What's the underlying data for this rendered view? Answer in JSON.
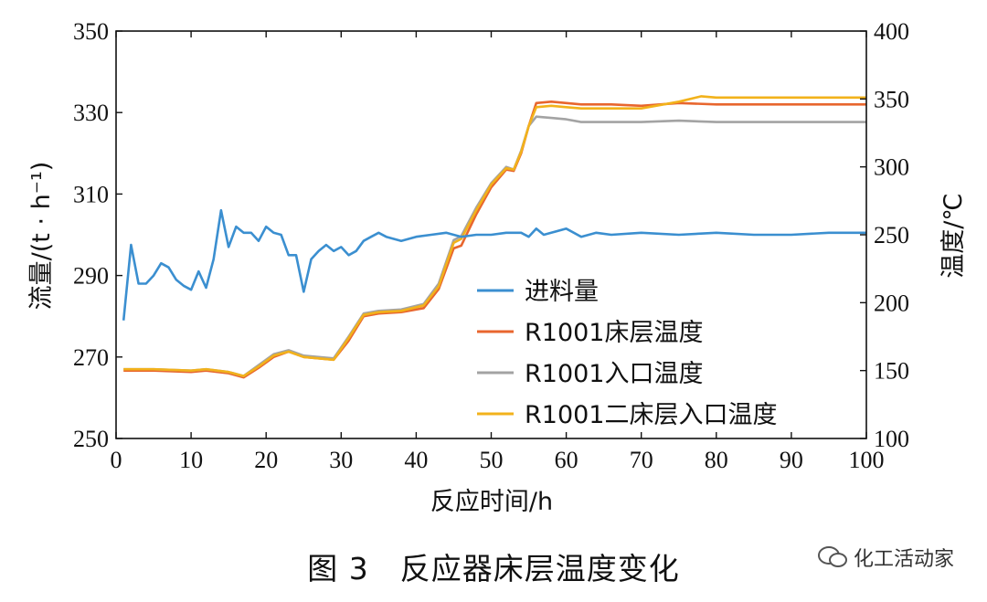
{
  "caption": "图 3　反应器床层温度变化",
  "watermark": "化工活动家",
  "chart_data": {
    "type": "line",
    "xlabel": "反应时间/h",
    "ylabel_left": "流量/(t · h⁻¹)",
    "ylabel_right": "温度/℃",
    "xlim": [
      0,
      100
    ],
    "ylim_left": [
      250,
      350
    ],
    "ylim_right": [
      100,
      400
    ],
    "xticks": [
      0,
      10,
      20,
      30,
      40,
      50,
      60,
      70,
      80,
      90,
      100
    ],
    "yticks_left": [
      250,
      270,
      290,
      310,
      330,
      350
    ],
    "yticks_right": [
      100,
      150,
      200,
      250,
      300,
      350,
      400
    ],
    "grid": false,
    "legend_position": "center-right",
    "series": [
      {
        "name": "进料量",
        "axis": "left",
        "color": "#3b8fd0",
        "x": [
          1,
          2,
          3,
          4,
          5,
          6,
          7,
          8,
          9,
          10,
          11,
          12,
          13,
          14,
          15,
          16,
          17,
          18,
          19,
          20,
          21,
          22,
          23,
          24,
          25,
          26,
          27,
          28,
          29,
          30,
          31,
          32,
          33,
          34,
          35,
          36,
          38,
          40,
          42,
          44,
          46,
          48,
          50,
          52,
          54,
          55,
          56,
          57,
          58,
          60,
          62,
          64,
          66,
          70,
          75,
          80,
          85,
          90,
          95,
          100
        ],
        "y": [
          279,
          297.5,
          288,
          288,
          290,
          293,
          292,
          289,
          287.5,
          286.5,
          291,
          287,
          294,
          306,
          297,
          302,
          300.5,
          300.5,
          298.5,
          302,
          300.5,
          300,
          295,
          295,
          286,
          294,
          296,
          297.5,
          296,
          297,
          295,
          296,
          298.5,
          299.5,
          300.5,
          299.5,
          298.5,
          299.5,
          300,
          300.5,
          299.5,
          300,
          300,
          300.5,
          300.5,
          299.5,
          301.5,
          300,
          300.5,
          301.5,
          299.5,
          300.5,
          300,
          300.5,
          300,
          300.5,
          300,
          300,
          300.5,
          300.5
        ]
      },
      {
        "name": "R1001床层温度",
        "axis": "right",
        "color": "#e8662e",
        "x": [
          1,
          5,
          10,
          12,
          15,
          17,
          19,
          21,
          23,
          25,
          27,
          29,
          31,
          33,
          35,
          38,
          41,
          43,
          45,
          46,
          48,
          50,
          52,
          53,
          54,
          55,
          56,
          58,
          60,
          62,
          66,
          70,
          75,
          80,
          85,
          90,
          95,
          100
        ],
        "y": [
          150,
          150,
          149,
          150,
          148,
          145,
          152,
          160,
          164,
          160,
          159,
          158,
          172,
          190,
          192,
          193,
          196,
          210,
          240,
          242,
          265,
          285,
          298,
          297,
          310,
          330,
          347,
          348,
          347,
          346,
          346,
          345,
          347,
          346,
          346,
          346,
          346,
          346
        ]
      },
      {
        "name": "R1001入口温度",
        "axis": "right",
        "color": "#a3a3a3",
        "x": [
          1,
          5,
          10,
          12,
          15,
          17,
          19,
          21,
          23,
          25,
          27,
          29,
          31,
          33,
          35,
          38,
          41,
          43,
          45,
          46,
          48,
          50,
          52,
          53,
          54,
          55,
          56,
          58,
          60,
          62,
          66,
          70,
          75,
          80,
          85,
          90,
          95,
          100
        ],
        "y": [
          151,
          151,
          150,
          151,
          149,
          146,
          154,
          162,
          165,
          161,
          160,
          159,
          175,
          192,
          194,
          195,
          199,
          214,
          246,
          249,
          270,
          288,
          300,
          298,
          312,
          330,
          337,
          336,
          335,
          333,
          333,
          333,
          334,
          333,
          333,
          333,
          333,
          333
        ]
      },
      {
        "name": "R1001二床层入口温度",
        "axis": "right",
        "color": "#f2b21b",
        "x": [
          1,
          5,
          10,
          12,
          15,
          17,
          19,
          21,
          23,
          25,
          27,
          29,
          31,
          33,
          35,
          38,
          41,
          43,
          45,
          46,
          48,
          50,
          52,
          53,
          54,
          55,
          56,
          58,
          60,
          62,
          66,
          70,
          75,
          78,
          80,
          85,
          90,
          95,
          100
        ],
        "y": [
          151,
          151,
          150,
          151,
          149,
          146,
          153,
          161,
          164,
          160,
          159,
          158,
          174,
          191,
          193,
          194,
          198,
          212,
          244,
          247,
          268,
          287,
          299,
          298,
          311,
          330,
          344,
          345,
          344,
          343,
          343,
          343,
          348,
          352,
          351,
          351,
          351,
          351,
          351
        ]
      }
    ]
  }
}
